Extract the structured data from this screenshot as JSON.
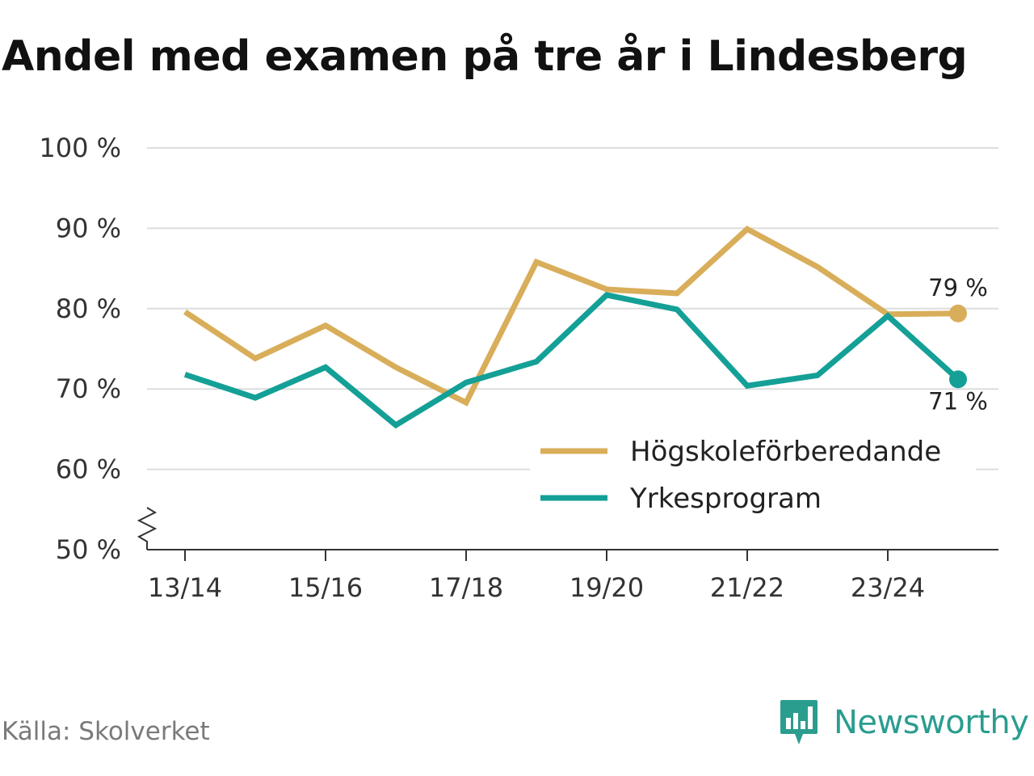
{
  "chart_data": {
    "type": "line",
    "title": "Andel med examen på tre år i Lindesberg",
    "x": [
      "13/14",
      "14/15",
      "15/16",
      "16/17",
      "17/18",
      "18/19",
      "19/20",
      "20/21",
      "21/22",
      "22/23",
      "23/24",
      "24/25"
    ],
    "x_tick_labels": [
      "13/14",
      "15/16",
      "17/18",
      "19/20",
      "21/22",
      "23/24"
    ],
    "ylim": [
      50,
      100
    ],
    "y_ticks": [
      50,
      60,
      70,
      80,
      90,
      100
    ],
    "y_tick_labels": [
      "50 %",
      "60 %",
      "70 %",
      "80 %",
      "90 %",
      "100 %"
    ],
    "y_axis_break": true,
    "grid": true,
    "legend": "bottom-right",
    "series": [
      {
        "name": "Högskoleförberedande",
        "color": "#d9ae5a",
        "values": [
          79.6,
          73.8,
          77.9,
          72.7,
          68.3,
          85.8,
          82.4,
          81.9,
          89.9,
          85.2,
          79.3,
          79.4
        ],
        "end_label": "79 %"
      },
      {
        "name": "Yrkesprogram",
        "color": "#14a096",
        "values": [
          71.8,
          68.9,
          72.7,
          65.5,
          70.8,
          73.4,
          81.7,
          79.9,
          70.4,
          71.7,
          79.1,
          71.2
        ],
        "end_label": "71 %"
      }
    ],
    "xlabel": "",
    "ylabel": ""
  },
  "footer": {
    "source": "Källa: Skolverket",
    "brand": "Newsworthy",
    "brand_color": "#2a9d8f",
    "brand_icon": "bar-chart-speech-bubble-icon"
  }
}
